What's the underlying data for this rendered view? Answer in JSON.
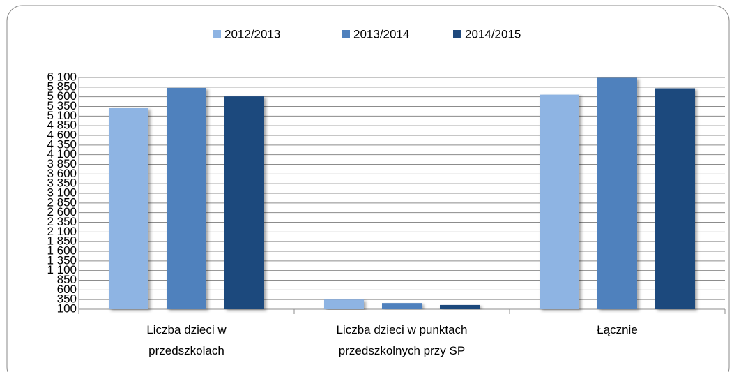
{
  "chart_data": {
    "type": "bar",
    "categories": [
      "Liczba dzieci w przedszkolach",
      "Liczba dzieci w punktach przedszkolnych przy SP",
      "Łącznie"
    ],
    "series": [
      {
        "name": "2012/2013",
        "color": "#8eb4e3",
        "values": [
          5305,
          350,
          5655
        ]
      },
      {
        "name": "2013/2014",
        "color": "#4f81bd",
        "values": [
          5830,
          260,
          6090
        ]
      },
      {
        "name": "2014/2015",
        "color": "#1f497d",
        "values": [
          5610,
          210,
          5820
        ]
      }
    ],
    "ylim": [
      100,
      6100
    ],
    "yticks": [
      100,
      350,
      600,
      850,
      {
        "value": 1100,
        "label": "1 100"
      },
      {
        "value": 1350,
        "label": "1 350"
      },
      {
        "value": 1600,
        "label": "1 600"
      },
      {
        "value": 1850,
        "label": "1 850"
      },
      {
        "value": 2100,
        "label": "2 100"
      },
      {
        "value": 2350,
        "label": "2 350"
      },
      {
        "value": 2600,
        "label": "2 600"
      },
      {
        "value": 2850,
        "label": "2 850"
      },
      {
        "value": 3100,
        "label": "3 100"
      },
      {
        "value": 3350,
        "label": "3 350"
      },
      {
        "value": 3600,
        "label": "3 600"
      },
      {
        "value": 3850,
        "label": "3 850"
      },
      {
        "value": 4100,
        "label": "4 100"
      },
      {
        "value": 4350,
        "label": "4 350"
      },
      {
        "value": 4600,
        "label": "4 600"
      },
      {
        "value": 4850,
        "label": "4 850"
      },
      {
        "value": 5100,
        "label": "5 100"
      },
      {
        "value": 5350,
        "label": "5 350"
      },
      {
        "value": 5600,
        "label": "5 600"
      },
      {
        "value": 5850,
        "label": "5 850"
      },
      {
        "value": 6100,
        "label": "6 100"
      }
    ],
    "grid": true,
    "legend": "top"
  }
}
